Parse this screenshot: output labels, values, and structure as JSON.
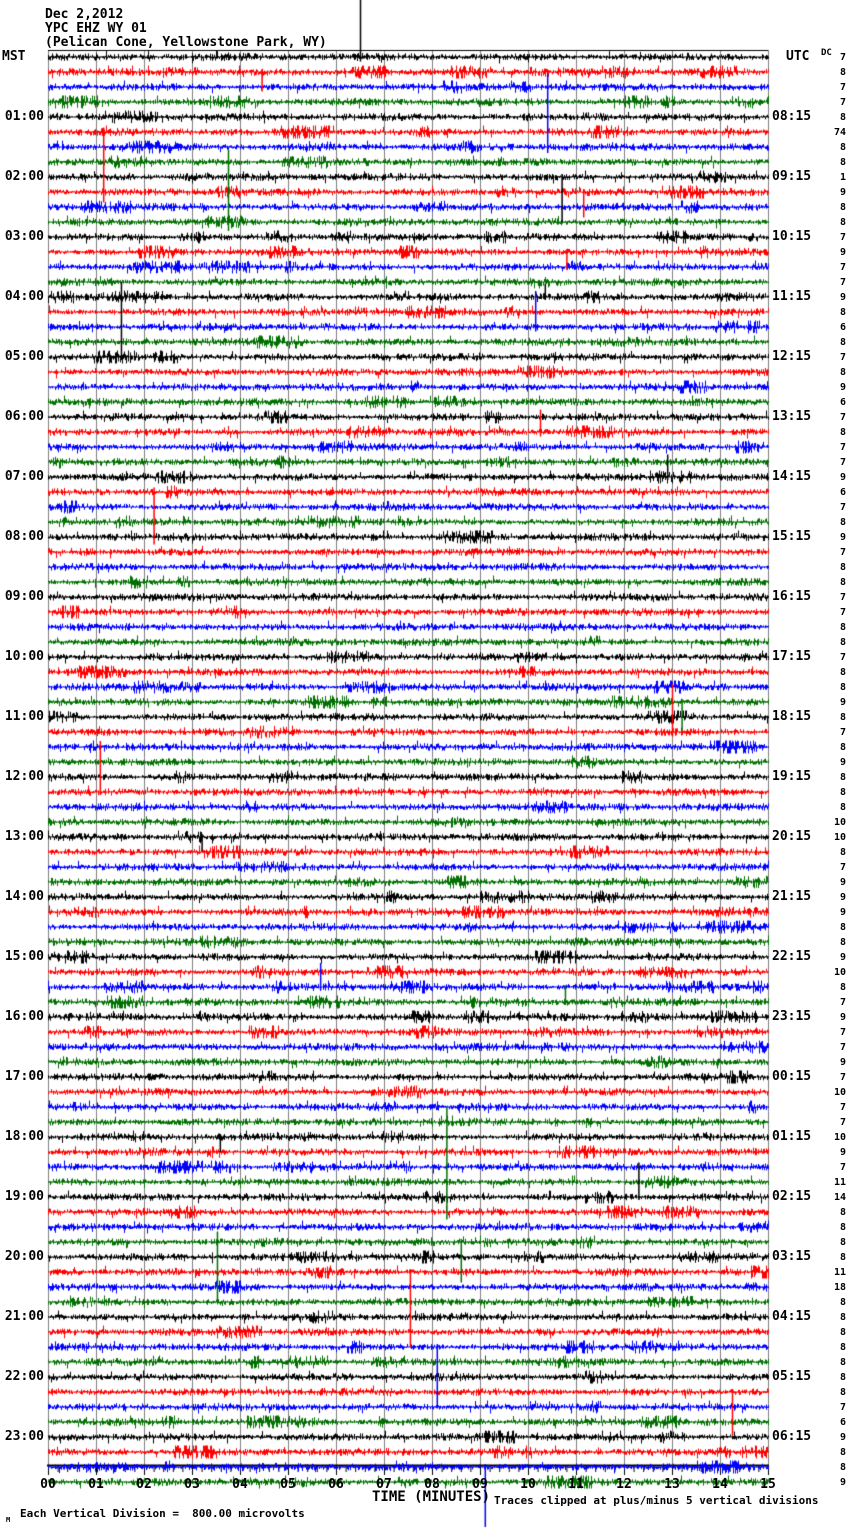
{
  "header": {
    "date": "Dec 2,2012",
    "station": "YPC EHZ WY 01",
    "location": "(Pelican Cone, Yellowstone Park, WY)"
  },
  "axes": {
    "left_header": "MST",
    "right_header": "UTC",
    "dc_header": "DC"
  },
  "footer": {
    "scale_note": "Each Vertical Division =  800.00 microvolts",
    "clip_note": "Traces clipped at plus/minus 5 vertical divisions",
    "corner_mark": "M"
  },
  "chart_data": {
    "type": "line",
    "subtype": "helicorder-seismogram",
    "title": "YPC EHZ WY 01",
    "date": "Dec 2,2012",
    "location": "(Pelican Cone, Yellowstone Park, WY)",
    "x_axis": {
      "label": "TIME (MINUTES)",
      "tick_labels": [
        "00",
        "01",
        "02",
        "03",
        "04",
        "05",
        "06",
        "07",
        "08",
        "09",
        "10",
        "11",
        "12",
        "13",
        "14",
        "15"
      ],
      "minutes_per_line": 15,
      "minor_ticks_per_minute": 5
    },
    "left_axis": {
      "header": "MST",
      "hour_labels": [
        "01:00",
        "02:00",
        "03:00",
        "04:00",
        "05:00",
        "06:00",
        "07:00",
        "08:00",
        "09:00",
        "10:00",
        "11:00",
        "12:00",
        "13:00",
        "14:00",
        "15:00",
        "16:00",
        "17:00",
        "18:00",
        "19:00",
        "20:00",
        "21:00",
        "22:00",
        "23:00"
      ]
    },
    "right_axis": {
      "header": "UTC",
      "hour_labels": [
        "08:15",
        "09:15",
        "10:15",
        "11:15",
        "12:15",
        "13:15",
        "14:15",
        "15:15",
        "16:15",
        "17:15",
        "18:15",
        "19:15",
        "20:15",
        "21:15",
        "22:15",
        "23:15",
        "00:15",
        "01:15",
        "02:15",
        "03:15",
        "04:15",
        "05:15",
        "06:15"
      ]
    },
    "dc_column": {
      "header": "DC",
      "values": [
        7,
        8,
        7,
        7,
        8,
        74,
        8,
        8,
        1,
        9,
        8,
        8,
        7,
        9,
        7,
        7,
        9,
        8,
        6,
        8,
        7,
        8,
        9,
        6,
        7,
        8,
        7,
        7,
        9,
        6,
        7,
        8,
        9,
        7,
        8,
        8,
        7,
        7,
        8,
        8,
        7,
        8,
        8,
        9,
        8,
        7,
        8,
        9,
        8,
        8,
        8,
        10,
        10,
        8,
        7,
        9,
        9,
        9,
        8,
        8,
        9,
        10,
        8,
        7,
        9,
        7,
        7,
        9,
        7,
        10,
        7,
        7,
        10,
        9,
        7,
        11,
        14,
        8,
        8,
        8,
        8,
        11,
        18,
        8,
        8,
        8,
        8,
        8,
        8,
        8,
        7,
        6,
        9,
        8,
        8,
        9
      ]
    },
    "trace_colors": [
      "#000000",
      "#ff0000",
      "#0000ff",
      "#006f00"
    ],
    "grid_color": "#7f7f7f",
    "lines_per_hour": 4,
    "total_lines": 96,
    "clip_divisions": 5,
    "events_format": [
      "line_index",
      "minute",
      "up_divisions",
      "down_divisions"
    ],
    "events": [
      [
        0,
        6.5,
        3.8,
        0.3
      ],
      [
        1,
        4.45,
        0.2,
        1.3
      ],
      [
        5,
        1.15,
        0.3,
        4.7
      ],
      [
        6,
        10.4,
        4.9,
        0.4
      ],
      [
        8,
        10.7,
        0.2,
        3.0
      ],
      [
        9,
        11.15,
        0.2,
        1.7
      ],
      [
        11,
        3.75,
        4.8,
        0.6
      ],
      [
        13,
        10.8,
        0.2,
        1.2
      ],
      [
        16,
        10.35,
        0.9,
        0.2
      ],
      [
        18,
        10.15,
        2.4,
        0.3
      ],
      [
        20,
        1.52,
        5.0,
        0.2
      ],
      [
        25,
        10.25,
        1.5,
        0.3
      ],
      [
        28,
        12.9,
        1.5,
        0.2
      ],
      [
        29,
        2.2,
        0.3,
        3.5
      ],
      [
        43,
        13.2,
        0.2,
        1.9
      ],
      [
        45,
        13.0,
        3.2,
        0.3
      ],
      [
        49,
        1.08,
        3.4,
        0.2
      ],
      [
        52,
        3.2,
        0.2,
        0.9
      ],
      [
        62,
        5.67,
        1.6,
        0.2
      ],
      [
        63,
        10.77,
        1.1,
        0.2
      ],
      [
        72,
        3.58,
        0.2,
        1.0
      ],
      [
        75,
        8.3,
        5.0,
        2.5
      ],
      [
        76,
        12.3,
        2.3,
        0.2
      ],
      [
        79,
        3.52,
        0.7,
        4.0
      ],
      [
        79,
        8.6,
        0.2,
        2.7
      ],
      [
        81,
        7.54,
        0.2,
        5.0
      ],
      [
        86,
        8.1,
        0.2,
        4.1
      ],
      [
        89,
        14.25,
        0.2,
        2.9
      ],
      [
        94,
        9.1,
        0.2,
        4.0
      ]
    ]
  }
}
